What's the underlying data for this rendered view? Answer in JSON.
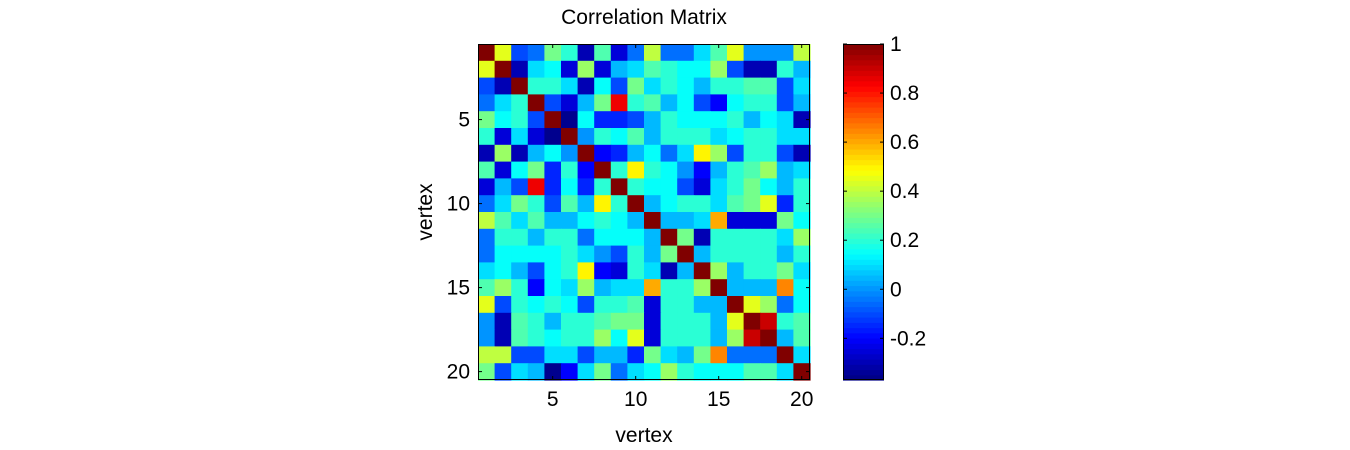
{
  "chart_data": {
    "type": "heatmap",
    "title": "Correlation Matrix",
    "xlabel": "vertex",
    "ylabel": "vertex",
    "x_ticks": [
      5,
      10,
      15,
      20
    ],
    "y_ticks": [
      5,
      10,
      15,
      20
    ],
    "colormap": "jet",
    "clim": [
      -0.37,
      1
    ],
    "colorbar_ticks": [
      1,
      0.8,
      0.6,
      0.4,
      0.2,
      0,
      -0.2
    ],
    "colorbar_labels": [
      "1",
      "0.8",
      "0.6",
      "0.4",
      "0.2",
      "0",
      "-0.2"
    ],
    "matrix": [
      [
        1,
        0.45,
        -0.1,
        -0.05,
        0.3,
        0.2,
        -0.3,
        0.25,
        -0.25,
        -0.05,
        0.4,
        -0.05,
        -0.05,
        0.1,
        0.25,
        0.45,
        0,
        0,
        0,
        0.4
      ],
      [
        0.45,
        1,
        -0.3,
        0.1,
        0.15,
        -0.25,
        0.35,
        -0.25,
        0.05,
        0.1,
        0.25,
        0.2,
        0.15,
        0.15,
        0.35,
        -0.1,
        -0.3,
        -0.3,
        0.2,
        0.05
      ],
      [
        -0.1,
        -0.3,
        1,
        0.2,
        0.2,
        0.1,
        -0.3,
        0.15,
        -0.1,
        0.3,
        0.1,
        0.2,
        0.15,
        0.05,
        0.2,
        0.2,
        0.25,
        0.25,
        -0.1,
        0.1
      ],
      [
        -0.05,
        0.1,
        0.2,
        1,
        -0.1,
        -0.25,
        0.05,
        0.3,
        0.85,
        0.2,
        0.25,
        0.05,
        0.15,
        -0.1,
        -0.2,
        0.15,
        0.2,
        0.2,
        -0.1,
        0.05
      ],
      [
        0.3,
        0.15,
        0.2,
        -0.1,
        1,
        -0.35,
        0.15,
        -0.15,
        -0.15,
        -0.1,
        0.05,
        0.2,
        0.15,
        0.15,
        0.15,
        0.2,
        0.05,
        0.15,
        0.1,
        -0.3
      ],
      [
        0.2,
        -0.25,
        0.1,
        -0.25,
        -0.35,
        1,
        0,
        0.2,
        0.15,
        0.25,
        0.05,
        0.2,
        0.2,
        0.2,
        0.1,
        0.15,
        0.2,
        0.2,
        0.1,
        0.1
      ],
      [
        -0.3,
        0.35,
        -0.3,
        0.05,
        0.15,
        0,
        1,
        -0.2,
        -0.15,
        0.05,
        0.15,
        -0.05,
        0.1,
        0.5,
        0.35,
        -0.1,
        0.2,
        0.2,
        -0.1,
        -0.3
      ],
      [
        0.25,
        -0.25,
        0.15,
        0.3,
        -0.15,
        0.2,
        -0.2,
        1,
        0.2,
        0.5,
        0.2,
        0.15,
        0,
        -0.2,
        0.05,
        0.2,
        0.25,
        0.35,
        0.05,
        0.1
      ],
      [
        -0.25,
        0.05,
        -0.1,
        0.85,
        -0.15,
        0.15,
        -0.15,
        0.2,
        1,
        0.2,
        0.15,
        0.15,
        -0.1,
        -0.25,
        0.1,
        0.2,
        0.3,
        0.15,
        0.05,
        0.2
      ],
      [
        -0.05,
        0.1,
        0.3,
        0.2,
        -0.1,
        0.25,
        0.05,
        0.5,
        0.2,
        1,
        0.05,
        0.15,
        0.2,
        0.2,
        0.1,
        0.25,
        0.3,
        0.45,
        -0.15,
        0.2
      ],
      [
        0.4,
        0.25,
        0.1,
        0.25,
        0.05,
        0.05,
        0.15,
        0.2,
        0.15,
        0.05,
        1,
        0.05,
        0.05,
        0.1,
        0.6,
        -0.25,
        -0.25,
        -0.25,
        0.3,
        0.15
      ],
      [
        -0.05,
        0.2,
        0.2,
        0.05,
        0.2,
        0.2,
        -0.05,
        0.15,
        0.15,
        0.15,
        0.05,
        1,
        0.3,
        -0.3,
        0.2,
        0.2,
        0.2,
        0.2,
        0.1,
        0.35
      ],
      [
        -0.05,
        0.15,
        0.15,
        0.15,
        0.15,
        0.2,
        0.1,
        0,
        -0.1,
        0.2,
        0.05,
        0.3,
        1,
        0.05,
        0.2,
        0.2,
        0.2,
        0.2,
        0.05,
        0.2
      ],
      [
        0.1,
        0.15,
        0.05,
        -0.1,
        0.15,
        0.2,
        0.5,
        -0.2,
        -0.25,
        0.2,
        0.1,
        -0.3,
        0.05,
        1,
        0.35,
        0.05,
        0.2,
        0.2,
        0.3,
        0.1
      ],
      [
        0.25,
        0.35,
        0.2,
        -0.2,
        0.15,
        0.1,
        0.35,
        0.05,
        0.1,
        0.1,
        0.6,
        0.2,
        0.2,
        0.35,
        1,
        0.05,
        0.05,
        0.05,
        0.65,
        0.15
      ],
      [
        0.45,
        -0.1,
        0.2,
        0.15,
        0.2,
        0.15,
        -0.1,
        0.2,
        0.2,
        0.25,
        -0.25,
        0.2,
        0.2,
        0.05,
        0.05,
        1,
        0.45,
        0.35,
        -0.05,
        0.15
      ],
      [
        0,
        -0.3,
        0.25,
        0.2,
        0.05,
        0.2,
        0.2,
        0.25,
        0.3,
        0.3,
        -0.25,
        0.2,
        0.2,
        0.2,
        0.05,
        0.45,
        1,
        0.9,
        0.2,
        0.25
      ],
      [
        0,
        -0.3,
        0.25,
        0.2,
        0.15,
        0.2,
        0.2,
        0.35,
        0.15,
        0.45,
        -0.25,
        0.2,
        0.2,
        0.2,
        0.05,
        0.35,
        0.9,
        1,
        0.05,
        0.25
      ],
      [
        0.4,
        0.4,
        -0.1,
        -0.1,
        0.1,
        0.1,
        -0.1,
        0.05,
        0.05,
        -0.15,
        0.3,
        0.1,
        0.05,
        0.3,
        0.65,
        -0.05,
        -0.05,
        -0.05,
        1,
        0.1
      ],
      [
        0.3,
        -0.1,
        0.1,
        0.05,
        -0.35,
        -0.2,
        0.1,
        0.3,
        -0.05,
        0.1,
        0.15,
        0.35,
        0.2,
        0.15,
        0.15,
        0.15,
        0.25,
        0.25,
        0.1,
        1
      ]
    ]
  }
}
